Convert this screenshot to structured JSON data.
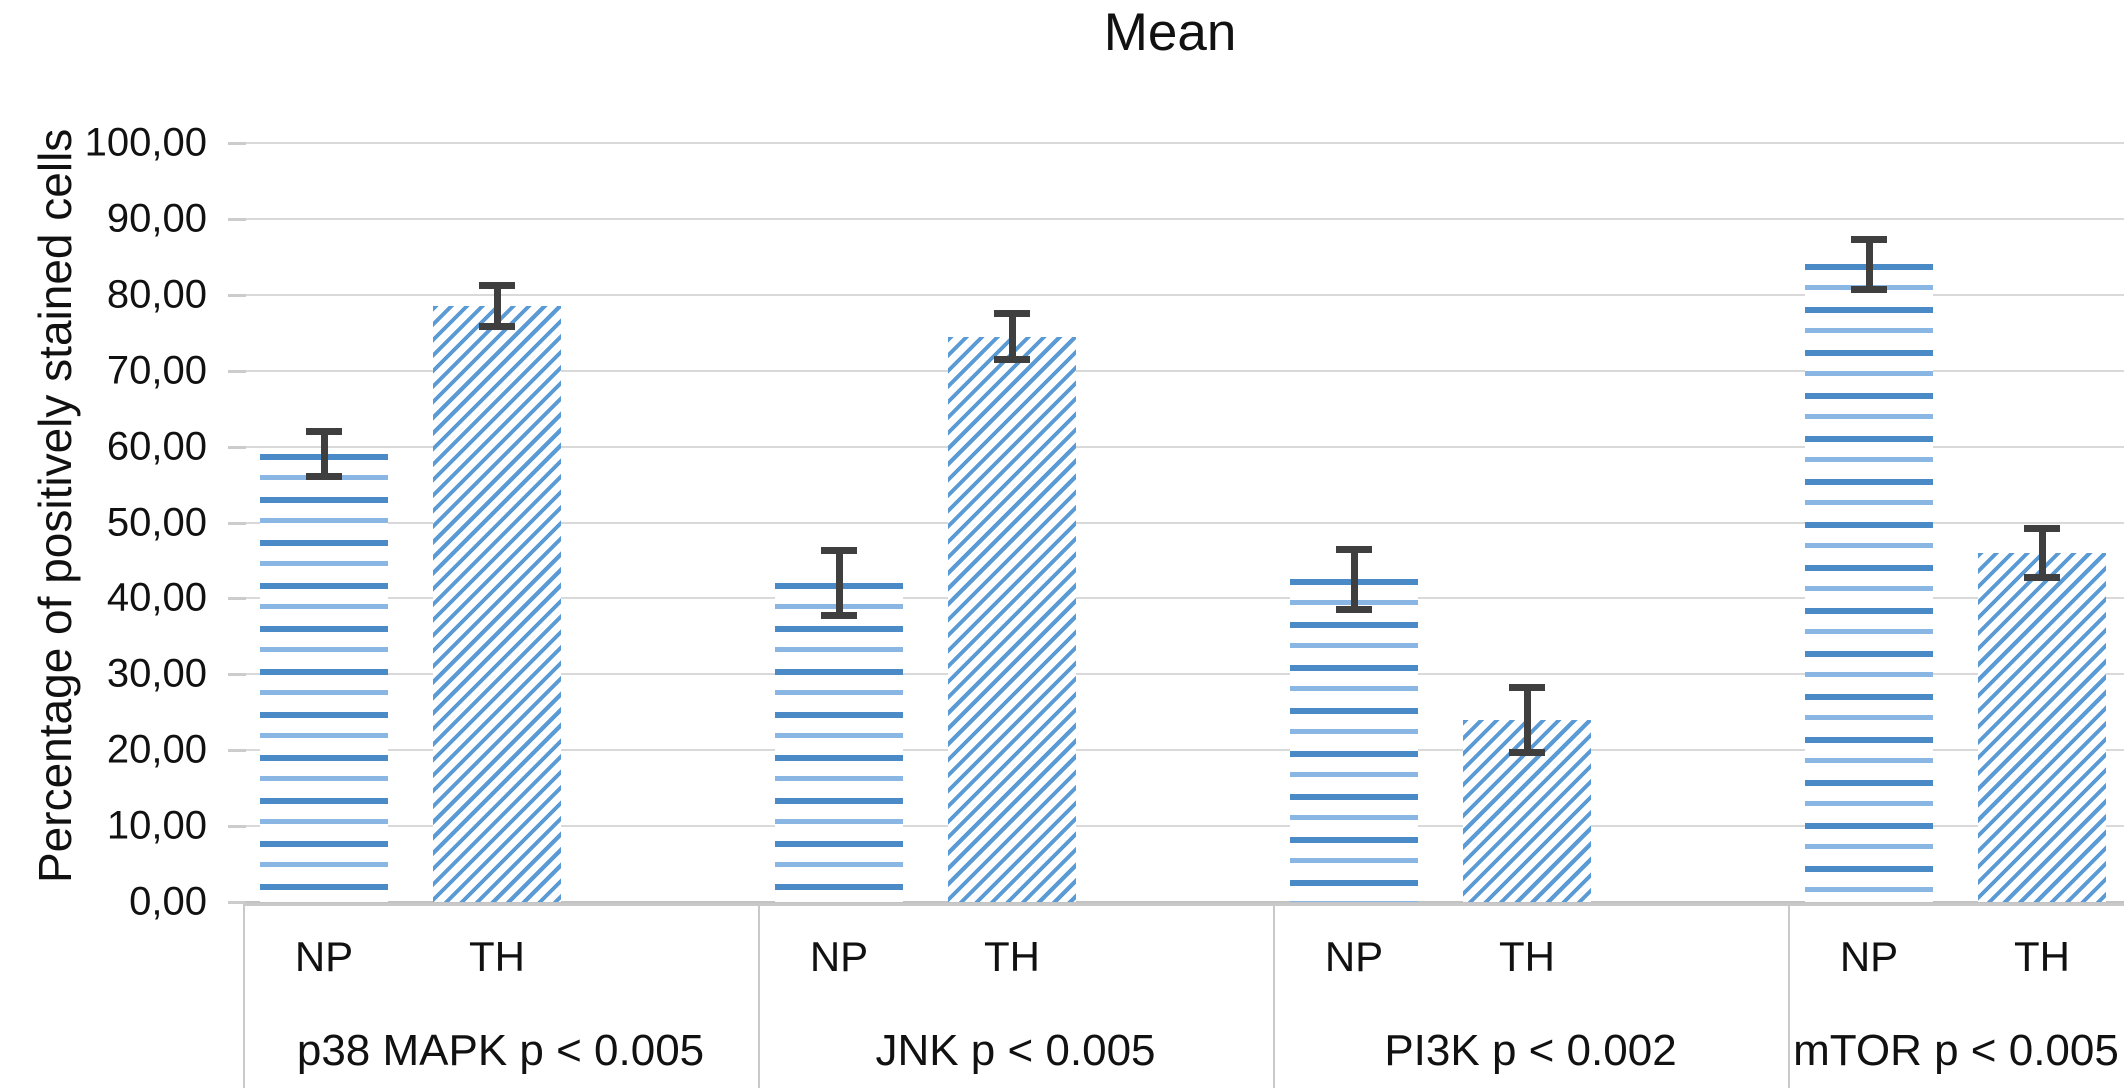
{
  "title": "Mean",
  "y_axis": {
    "label": "Percentage of positively stained cells",
    "tick_labels": [
      "0,00",
      "10,00",
      "20,00",
      "30,00",
      "40,00",
      "50,00",
      "60,00",
      "70,00",
      "80,00",
      "90,00",
      "100,00"
    ]
  },
  "chart_data": {
    "type": "bar",
    "title": "Mean",
    "xlabel": "",
    "ylabel": "Percentage of positively stained cells",
    "ylim": [
      0,
      100
    ],
    "ytick_step": 10,
    "decimal_separator": "comma",
    "grid": true,
    "legend": "none",
    "error_bars": true,
    "categories": [
      "p38 MAPK p < 0.005",
      "JNK p < 0.005",
      "PI3K p < 0.002",
      "mTOR p < 0.005"
    ],
    "subcategories": [
      "NP",
      "TH"
    ],
    "series": [
      {
        "name": "NP",
        "pattern": "horizontal-stripes",
        "values": [
          59,
          42,
          42.5,
          84
        ],
        "errors": [
          3,
          4.3,
          4,
          3.3
        ]
      },
      {
        "name": "TH",
        "pattern": "diagonal-stripes",
        "values": [
          78.5,
          74.5,
          24,
          46
        ],
        "errors": [
          2.7,
          3,
          4.3,
          3.2
        ]
      }
    ],
    "colors": {
      "stripe_blue_dark": "#4a8ac6",
      "stripe_blue_light": "#8ab6e3",
      "stripe_blue_diagonal": "#5b9bd5",
      "gridline": "#d9d9d9",
      "axis_line": "#c9c9c9",
      "error_bar": "#3f3f3f",
      "text": "#111111",
      "background": "#ffffff"
    }
  },
  "layout_note_values_visible_only": true
}
